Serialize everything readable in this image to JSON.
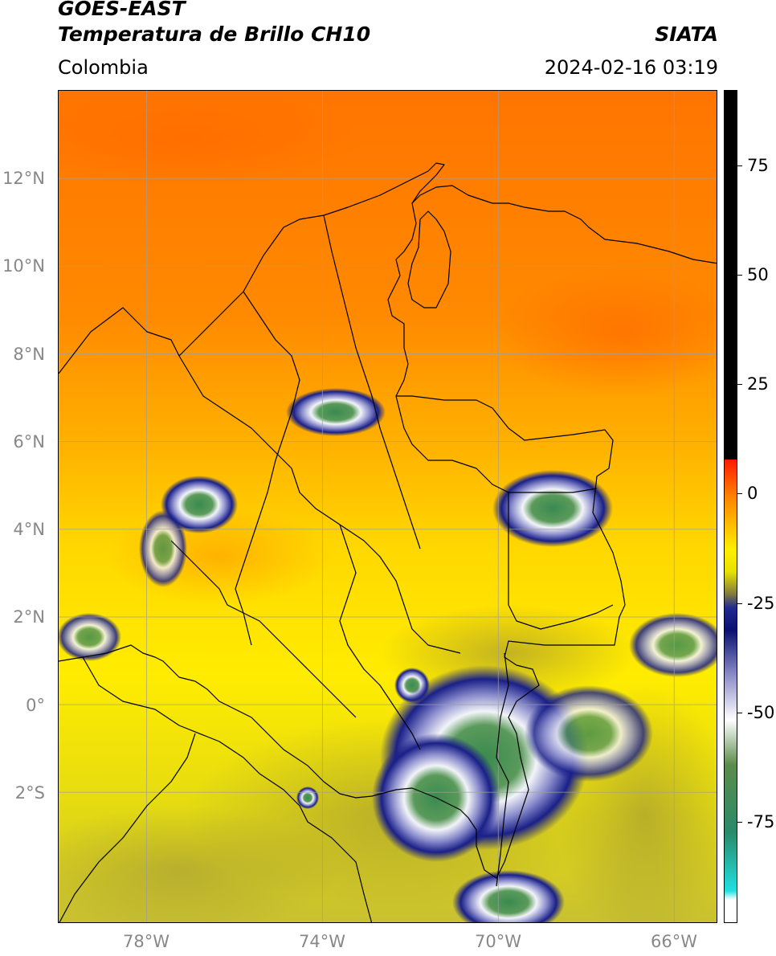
{
  "header": {
    "satellite": "GOES-EAST",
    "product": "Temperatura de Brillo CH10",
    "brand": "SIATA",
    "region": "Colombia",
    "datetime": "2024-02-16 03:19"
  },
  "map": {
    "lon_range": [
      -80,
      -65
    ],
    "lat_range": [
      -5,
      14
    ],
    "lat_ticks": [
      {
        "value": 12,
        "label": "12°N"
      },
      {
        "value": 10,
        "label": "10°N"
      },
      {
        "value": 8,
        "label": "8°N"
      },
      {
        "value": 6,
        "label": "6°N"
      },
      {
        "value": 4,
        "label": "4°N"
      },
      {
        "value": 2,
        "label": "2°N"
      },
      {
        "value": 0,
        "label": "0°"
      },
      {
        "value": -2,
        "label": "2°S"
      }
    ],
    "lon_ticks": [
      {
        "value": -78,
        "label": "78°W"
      },
      {
        "value": -74,
        "label": "74°W"
      },
      {
        "value": -70,
        "label": "70°W"
      },
      {
        "value": -66,
        "label": "66°W"
      }
    ],
    "gridlines": true,
    "gridline_color": "#9e9e9e"
  },
  "colorbar": {
    "orientation": "vertical",
    "range": [
      -95,
      90
    ],
    "ticks": [
      {
        "value": 75,
        "label": "75"
      },
      {
        "value": 50,
        "label": "50"
      },
      {
        "value": 25,
        "label": "25"
      },
      {
        "value": 0,
        "label": "0"
      },
      {
        "value": -25,
        "label": "-25"
      },
      {
        "value": -50,
        "label": "-50"
      },
      {
        "value": -75,
        "label": "-75"
      }
    ],
    "stops": [
      {
        "value": 90,
        "color": "#000000"
      },
      {
        "value": 8,
        "color": "#000000"
      },
      {
        "value": 7.9,
        "color": "#ff1a00"
      },
      {
        "value": 0,
        "color": "#ff8000"
      },
      {
        "value": -12,
        "color": "#ffee00"
      },
      {
        "value": -17,
        "color": "#e6e200"
      },
      {
        "value": -22,
        "color": "#807a40"
      },
      {
        "value": -25,
        "color": "#202a90"
      },
      {
        "value": -30,
        "color": "#0a1070"
      },
      {
        "value": -40,
        "color": "#8c8cc8"
      },
      {
        "value": -50,
        "color": "#ffffff"
      },
      {
        "value": -60,
        "color": "#5a8c4a"
      },
      {
        "value": -75,
        "color": "#2a8a6a"
      },
      {
        "value": -88,
        "color": "#20e0e0"
      },
      {
        "value": -90,
        "color": "#ffffff"
      },
      {
        "value": -95,
        "color": "#ffffff"
      }
    ]
  },
  "colors": {
    "background_warm": "#ff8000",
    "mid_yellow": "#ffe000",
    "south_olive": "#c8c230",
    "cloud_blue": "#1a2a8a",
    "cloud_white": "#e8eef8",
    "cloud_green": "#3a8a50",
    "border": "#000000"
  }
}
